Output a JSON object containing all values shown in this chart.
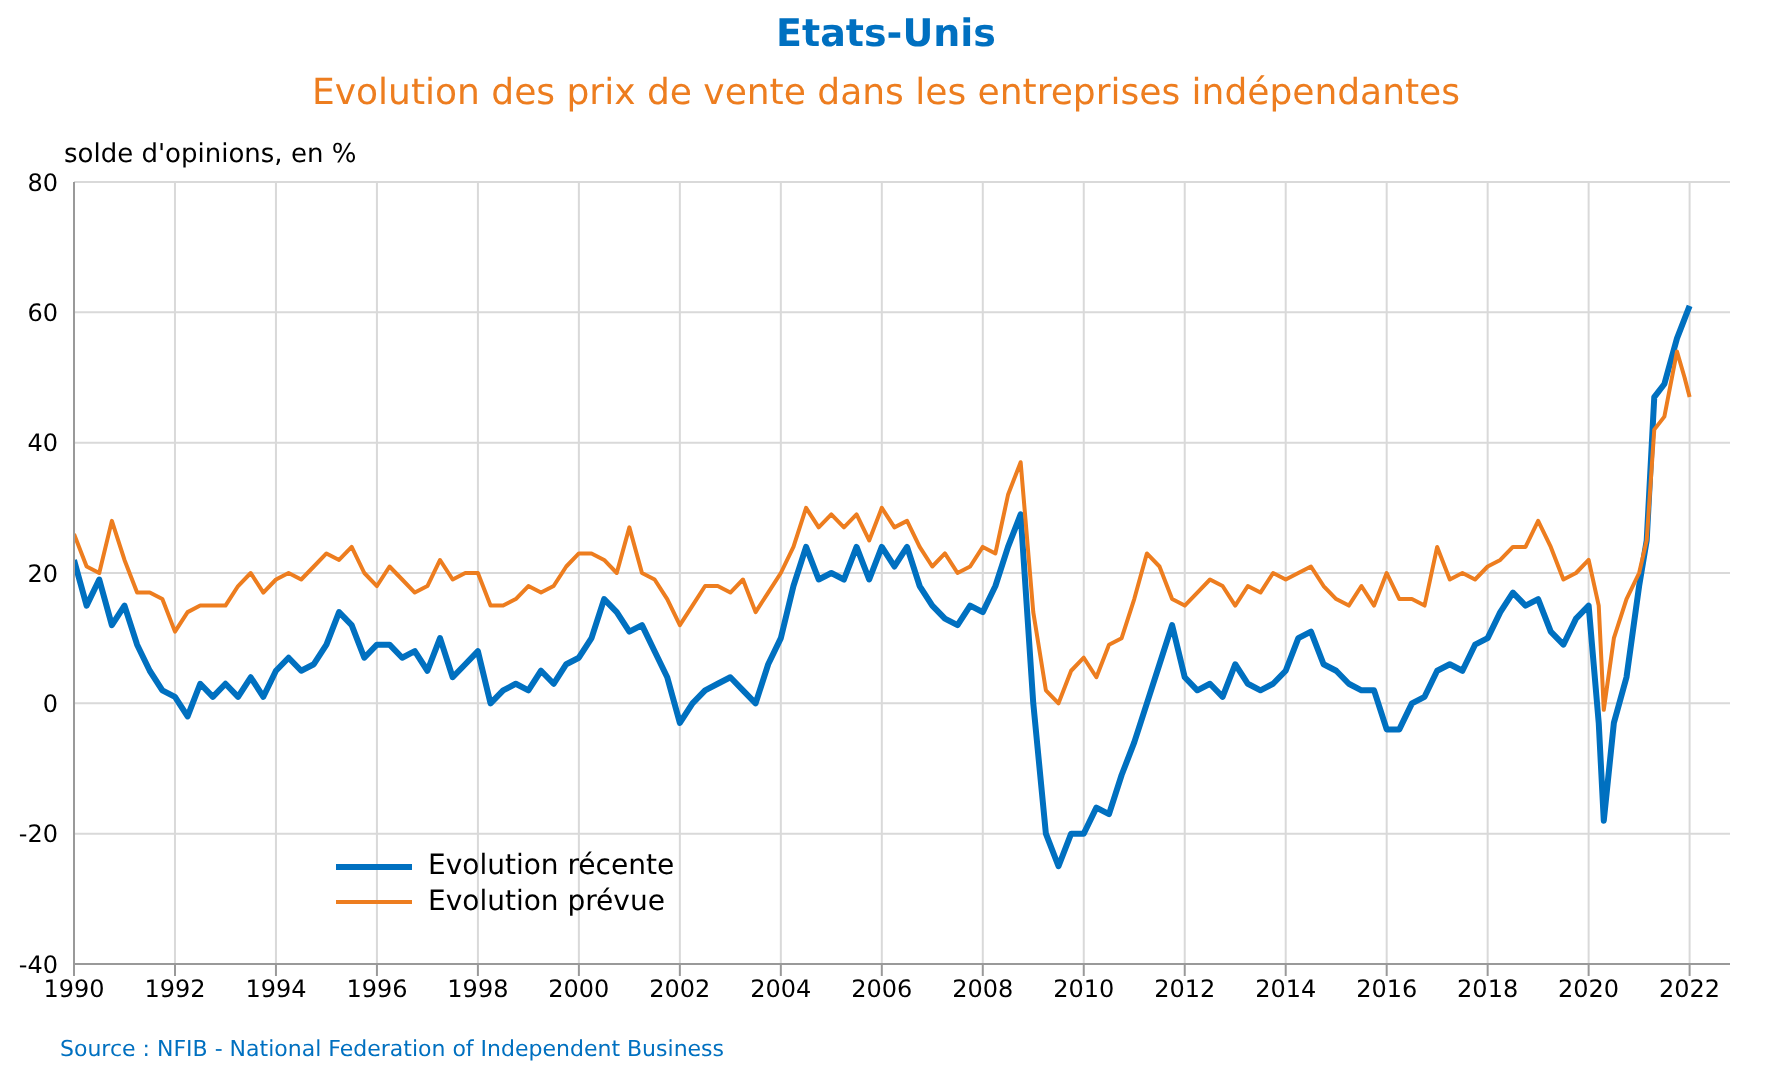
{
  "chart_data": {
    "type": "line",
    "title": "Etats-Unis",
    "subtitle": "Evolution des prix de vente dans les entreprises indépendantes",
    "ylabel": "solde d'opinions, en %",
    "x": [
      1990,
      1990.25,
      1990.5,
      1990.75,
      1991,
      1991.25,
      1991.5,
      1991.75,
      1992,
      1992.25,
      1992.5,
      1992.75,
      1993,
      1993.25,
      1993.5,
      1993.75,
      1994,
      1994.25,
      1994.5,
      1994.75,
      1995,
      1995.25,
      1995.5,
      1995.75,
      1996,
      1996.25,
      1996.5,
      1996.75,
      1997,
      1997.25,
      1997.5,
      1997.75,
      1998,
      1998.25,
      1998.5,
      1998.75,
      1999,
      1999.25,
      1999.5,
      1999.75,
      2000,
      2000.25,
      2000.5,
      2000.75,
      2001,
      2001.25,
      2001.5,
      2001.75,
      2002,
      2002.25,
      2002.5,
      2002.75,
      2003,
      2003.25,
      2003.5,
      2003.75,
      2004,
      2004.25,
      2004.5,
      2004.75,
      2005,
      2005.25,
      2005.5,
      2005.75,
      2006,
      2006.25,
      2006.5,
      2006.75,
      2007,
      2007.25,
      2007.5,
      2007.75,
      2008,
      2008.25,
      2008.5,
      2008.75,
      2009,
      2009.25,
      2009.5,
      2009.75,
      2010,
      2010.25,
      2010.5,
      2010.75,
      2011,
      2011.25,
      2011.5,
      2011.75,
      2012,
      2012.25,
      2012.5,
      2012.75,
      2013,
      2013.25,
      2013.5,
      2013.75,
      2014,
      2014.25,
      2014.5,
      2014.75,
      2015,
      2015.25,
      2015.5,
      2015.75,
      2016,
      2016.25,
      2016.5,
      2016.75,
      2017,
      2017.25,
      2017.5,
      2017.75,
      2018,
      2018.25,
      2018.5,
      2018.75,
      2019,
      2019.25,
      2019.5,
      2019.75,
      2020,
      2020.2,
      2020.3,
      2020.5,
      2020.75,
      2021,
      2021.15,
      2021.3,
      2021.5,
      2021.75,
      2021.9,
      2022
    ],
    "series": [
      {
        "name": "Evolution récente",
        "color": "#0070c0",
        "values": [
          22,
          15,
          19,
          12,
          15,
          9,
          5,
          2,
          1,
          -2,
          3,
          1,
          3,
          1,
          4,
          1,
          5,
          7,
          5,
          6,
          9,
          14,
          12,
          7,
          9,
          9,
          7,
          8,
          5,
          10,
          4,
          6,
          8,
          0,
          2,
          3,
          2,
          5,
          3,
          6,
          7,
          10,
          16,
          14,
          11,
          12,
          8,
          4,
          -3,
          0,
          2,
          3,
          4,
          2,
          0,
          6,
          10,
          18,
          24,
          19,
          20,
          19,
          24,
          19,
          24,
          21,
          24,
          18,
          15,
          13,
          12,
          15,
          14,
          18,
          24,
          29,
          0,
          -20,
          -25,
          -20,
          -20,
          -16,
          -17,
          -11,
          -6,
          0,
          6,
          12,
          4,
          2,
          3,
          1,
          6,
          3,
          2,
          3,
          5,
          10,
          11,
          6,
          5,
          3,
          2,
          2,
          -4,
          -4,
          0,
          1,
          5,
          6,
          5,
          9,
          10,
          14,
          17,
          15,
          16,
          11,
          9,
          13,
          15,
          -3,
          -18,
          -3,
          4,
          18,
          25,
          47,
          49,
          56,
          59,
          61
        ]
      },
      {
        "name": "Evolution prévue",
        "color": "#ed7d1f",
        "values": [
          26,
          21,
          20,
          28,
          22,
          17,
          17,
          16,
          11,
          14,
          15,
          15,
          15,
          18,
          20,
          17,
          19,
          20,
          19,
          21,
          23,
          22,
          24,
          20,
          18,
          21,
          19,
          17,
          18,
          22,
          19,
          20,
          20,
          15,
          15,
          16,
          18,
          17,
          18,
          21,
          23,
          23,
          22,
          20,
          27,
          20,
          19,
          16,
          12,
          15,
          18,
          18,
          17,
          19,
          14,
          17,
          20,
          24,
          30,
          27,
          29,
          27,
          29,
          25,
          30,
          27,
          28,
          24,
          21,
          23,
          20,
          21,
          24,
          23,
          32,
          37,
          14,
          2,
          0,
          5,
          7,
          4,
          9,
          10,
          16,
          23,
          21,
          16,
          15,
          17,
          19,
          18,
          15,
          18,
          17,
          20,
          19,
          20,
          21,
          18,
          16,
          15,
          18,
          15,
          20,
          16,
          16,
          15,
          24,
          19,
          20,
          19,
          21,
          22,
          24,
          24,
          28,
          24,
          19,
          20,
          22,
          15,
          -1,
          10,
          16,
          20,
          25,
          42,
          44,
          54,
          50,
          47
        ]
      }
    ],
    "xlim": [
      1990,
      2022.8
    ],
    "xticks": [
      1990,
      1992,
      1994,
      1996,
      1998,
      2000,
      2002,
      2004,
      2006,
      2008,
      2010,
      2012,
      2014,
      2016,
      2018,
      2020,
      2022
    ],
    "ylim": [
      -40,
      80
    ],
    "yticks": [
      -40,
      -20,
      0,
      20,
      40,
      60,
      80
    ],
    "grid": true,
    "legend": "bottom left",
    "annotations": [
      "Source : NFIB - National Federation of Independent Business"
    ]
  }
}
